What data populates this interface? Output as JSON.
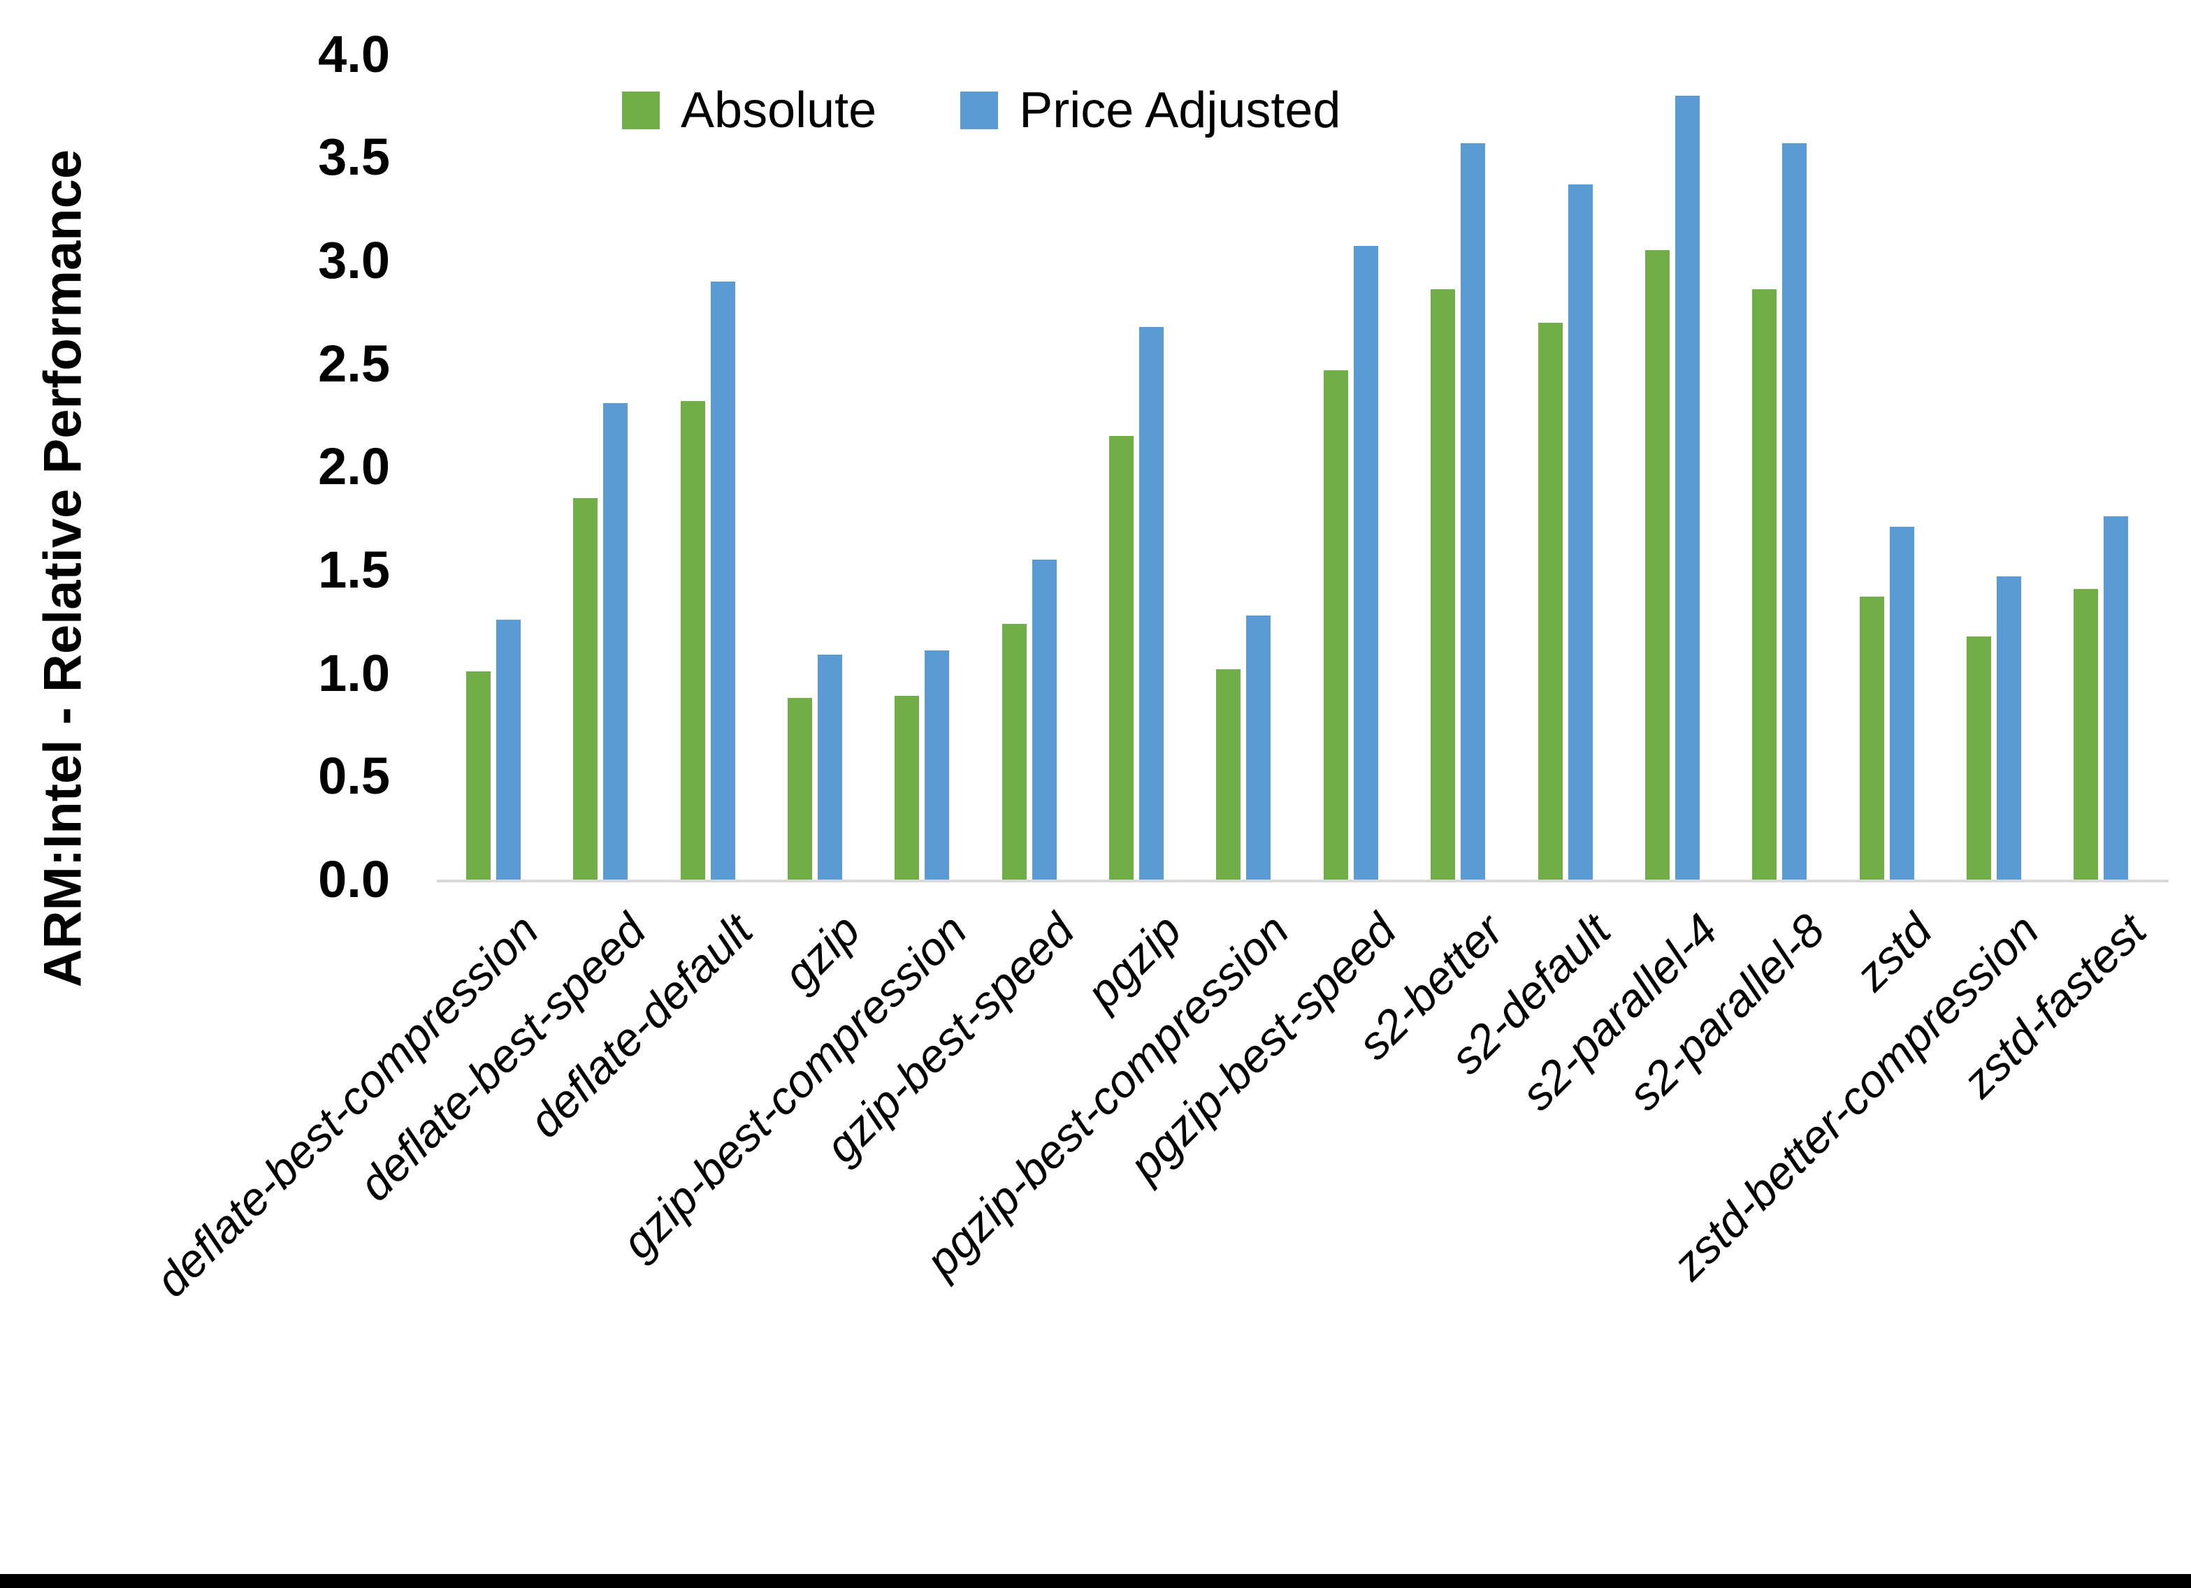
{
  "chart_data": {
    "type": "bar",
    "title": "",
    "xlabel": "",
    "ylabel": "ARM:Intel - Relative Performance",
    "ylim": [
      0.0,
      4.0
    ],
    "ytick_step": 0.5,
    "yticks": [
      "0.0",
      "0.5",
      "1.0",
      "1.5",
      "2.0",
      "2.5",
      "3.0",
      "3.5",
      "4.0"
    ],
    "grid": false,
    "legend_position": "top-center",
    "categories": [
      "deflate-best-compression",
      "deflate-best-speed",
      "deflate-default",
      "gzip",
      "gzip-best-compression",
      "gzip-best-speed",
      "pgzip",
      "pgzip-best-compression",
      "pgzip-best-speed",
      "s2-better",
      "s2-default",
      "s2-parallel-4",
      "s2-parallel-8",
      "zstd",
      "zstd-better-compression",
      "zstd-fastest"
    ],
    "series": [
      {
        "name": "Absolute",
        "color": "#70AD47",
        "values": [
          1.01,
          1.85,
          2.32,
          0.88,
          0.89,
          1.24,
          2.15,
          1.02,
          2.47,
          2.86,
          2.7,
          3.05,
          2.86,
          1.37,
          1.18,
          1.41
        ]
      },
      {
        "name": "Price Adjusted",
        "color": "#5B9BD5",
        "values": [
          1.26,
          2.31,
          2.9,
          1.09,
          1.11,
          1.55,
          2.68,
          1.28,
          3.07,
          3.57,
          3.37,
          3.8,
          3.57,
          1.71,
          1.47,
          1.76
        ]
      }
    ]
  },
  "colors": {
    "axis_line": "#d9d9d9",
    "text": "#000000",
    "background": "#ffffff",
    "bottom_border": "#000000"
  }
}
